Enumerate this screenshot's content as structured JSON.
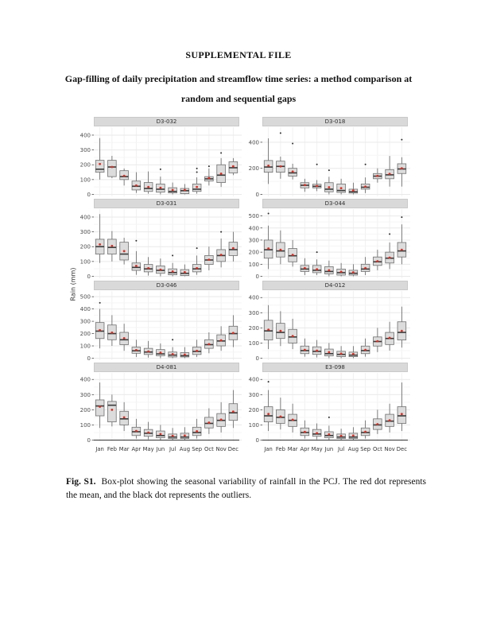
{
  "page": {
    "header": "SUPPLEMENTAL FILE",
    "title_line1": "Gap-filling of daily precipitation and streamflow time series: a method comparison at",
    "title_line2": "random and sequential gaps",
    "caption_label": "Fig. S1.",
    "caption_text": "Box-plot showing the seasonal variability of rainfall in the PCJ. The red dot represents the mean, and the black dot represents the outliers."
  },
  "figure": {
    "ylabel": "Rain (mm)",
    "colors": {
      "strip_bg": "#d9d9d9",
      "box_fill": "#dcdcdc",
      "box_border": "#6f6f6f",
      "median": "#3a3a3a",
      "whisker": "#606060",
      "mean_dot": "#d93025",
      "outlier_dot": "#2b2b2b",
      "grid_major": "#e9e9e9",
      "grid_minor": "#f5f5f5",
      "axis": "#333333",
      "tick_label": "#4d4d4d"
    }
  },
  "chart_data": {
    "type": "boxplot",
    "layout": "4x2 facet grid, shared x axis on bottom row",
    "categories": [
      "Jan",
      "Feb",
      "Mar",
      "Apr",
      "May",
      "Jun",
      "Jul",
      "Aug",
      "Sep",
      "Oct",
      "Nov",
      "Dec"
    ],
    "ylabel": "Rain (mm)",
    "grid": "on",
    "box_format": "[min, q1, median, q3, max]",
    "panels": [
      {
        "title": "D3-032",
        "yticks": [
          0,
          100,
          200,
          300,
          400
        ],
        "ylim": [
          0,
          440
        ],
        "boxes": [
          [
            100,
            150,
            170,
            230,
            380
          ],
          [
            110,
            120,
            185,
            230,
            260
          ],
          [
            60,
            100,
            120,
            160,
            175
          ],
          [
            10,
            30,
            55,
            90,
            150
          ],
          [
            5,
            20,
            40,
            80,
            155
          ],
          [
            0,
            15,
            35,
            70,
            120
          ],
          [
            0,
            10,
            20,
            45,
            80
          ],
          [
            0,
            5,
            25,
            40,
            70
          ],
          [
            5,
            20,
            35,
            70,
            115
          ],
          [
            60,
            90,
            105,
            120,
            175
          ],
          [
            50,
            80,
            130,
            200,
            245
          ],
          [
            130,
            145,
            180,
            220,
            245
          ]
        ],
        "means": [
          205,
          185,
          125,
          60,
          50,
          45,
          30,
          30,
          50,
          110,
          140,
          190
        ],
        "outliers": [
          [],
          [],
          [],
          [],
          [],
          [
            170
          ],
          [],
          [],
          [
            150,
            175
          ],
          [
            190
          ],
          [
            280
          ],
          []
        ]
      },
      {
        "title": "D3-018",
        "yticks": [
          0,
          200,
          400
        ],
        "ylim": [
          0,
          500
        ],
        "boxes": [
          [
            80,
            170,
            210,
            260,
            430
          ],
          [
            120,
            170,
            215,
            255,
            290
          ],
          [
            115,
            140,
            165,
            200,
            235
          ],
          [
            20,
            50,
            70,
            90,
            120
          ],
          [
            25,
            50,
            62,
            78,
            110
          ],
          [
            0,
            20,
            40,
            90,
            135
          ],
          [
            0,
            15,
            30,
            80,
            120
          ],
          [
            0,
            10,
            20,
            40,
            90
          ],
          [
            10,
            40,
            55,
            80,
            130
          ],
          [
            90,
            120,
            140,
            160,
            200
          ],
          [
            60,
            120,
            150,
            190,
            295
          ],
          [
            60,
            160,
            195,
            235,
            285
          ]
        ],
        "means": [
          220,
          215,
          175,
          72,
          65,
          55,
          48,
          30,
          60,
          142,
          158,
          200
        ],
        "outliers": [
          [],
          [
            470
          ],
          [
            390
          ],
          [],
          [
            230
          ],
          [
            185
          ],
          [],
          [],
          [
            230
          ],
          [],
          [],
          [
            420
          ]
        ]
      },
      {
        "title": "D3-031",
        "yticks": [
          0,
          100,
          200,
          300,
          400
        ],
        "ylim": [
          0,
          440
        ],
        "boxes": [
          [
            90,
            150,
            200,
            250,
            420
          ],
          [
            100,
            150,
            195,
            250,
            305
          ],
          [
            80,
            110,
            150,
            230,
            260
          ],
          [
            10,
            40,
            60,
            90,
            170
          ],
          [
            5,
            30,
            50,
            80,
            130
          ],
          [
            0,
            20,
            40,
            70,
            120
          ],
          [
            0,
            10,
            25,
            50,
            90
          ],
          [
            0,
            5,
            20,
            45,
            80
          ],
          [
            10,
            30,
            50,
            80,
            140
          ],
          [
            40,
            80,
            110,
            140,
            200
          ],
          [
            60,
            100,
            140,
            180,
            255
          ],
          [
            100,
            140,
            180,
            230,
            300
          ]
        ],
        "means": [
          215,
          205,
          170,
          70,
          55,
          45,
          33,
          28,
          55,
          112,
          145,
          190
        ],
        "outliers": [
          [],
          [],
          [],
          [
            240
          ],
          [],
          [],
          [
            140
          ],
          [],
          [
            190
          ],
          [],
          [
            300
          ],
          []
        ]
      },
      {
        "title": "D3-044",
        "yticks": [
          0,
          100,
          200,
          300,
          400,
          500
        ],
        "ylim": [
          0,
          540
        ],
        "boxes": [
          [
            60,
            150,
            220,
            300,
            420
          ],
          [
            100,
            160,
            210,
            280,
            380
          ],
          [
            80,
            120,
            170,
            230,
            300
          ],
          [
            10,
            40,
            60,
            90,
            150
          ],
          [
            10,
            30,
            50,
            90,
            140
          ],
          [
            0,
            20,
            40,
            80,
            130
          ],
          [
            0,
            10,
            30,
            60,
            110
          ],
          [
            0,
            10,
            25,
            50,
            100
          ],
          [
            10,
            40,
            60,
            100,
            160
          ],
          [
            50,
            90,
            120,
            160,
            220
          ],
          [
            60,
            110,
            150,
            200,
            280
          ],
          [
            100,
            160,
            210,
            280,
            430
          ]
        ],
        "means": [
          230,
          220,
          178,
          68,
          58,
          50,
          38,
          33,
          68,
          125,
          155,
          220
        ],
        "outliers": [
          [
            520
          ],
          [],
          [],
          [],
          [
            200
          ],
          [],
          [],
          [],
          [],
          [],
          [
            350
          ],
          [
            490
          ]
        ]
      },
      {
        "title": "D3-046",
        "yticks": [
          0,
          100,
          200,
          300,
          400,
          500
        ],
        "ylim": [
          0,
          530
        ],
        "boxes": [
          [
            80,
            160,
            220,
            290,
            400
          ],
          [
            100,
            150,
            200,
            270,
            350
          ],
          [
            60,
            110,
            150,
            210,
            280
          ],
          [
            10,
            40,
            60,
            90,
            150
          ],
          [
            5,
            30,
            50,
            80,
            140
          ],
          [
            0,
            20,
            35,
            70,
            120
          ],
          [
            0,
            10,
            25,
            50,
            90
          ],
          [
            0,
            10,
            20,
            45,
            90
          ],
          [
            10,
            30,
            55,
            90,
            150
          ],
          [
            40,
            80,
            110,
            150,
            210
          ],
          [
            60,
            100,
            140,
            190,
            260
          ],
          [
            90,
            150,
            200,
            260,
            350
          ]
        ],
        "means": [
          228,
          208,
          162,
          66,
          55,
          45,
          33,
          30,
          60,
          114,
          145,
          205
        ],
        "outliers": [
          [
            450
          ],
          [],
          [],
          [],
          [],
          [],
          [
            150
          ],
          [],
          [],
          [],
          [],
          []
        ]
      },
      {
        "title": "D4-012",
        "yticks": [
          0,
          100,
          200,
          300,
          400
        ],
        "ylim": [
          0,
          430
        ],
        "boxes": [
          [
            60,
            120,
            180,
            250,
            350
          ],
          [
            80,
            130,
            170,
            230,
            310
          ],
          [
            60,
            100,
            140,
            190,
            260
          ],
          [
            10,
            30,
            50,
            80,
            130
          ],
          [
            5,
            25,
            45,
            75,
            120
          ],
          [
            0,
            15,
            30,
            60,
            100
          ],
          [
            0,
            10,
            25,
            45,
            80
          ],
          [
            0,
            10,
            20,
            40,
            80
          ],
          [
            10,
            30,
            50,
            80,
            130
          ],
          [
            40,
            80,
            110,
            140,
            200
          ],
          [
            50,
            90,
            130,
            170,
            240
          ],
          [
            70,
            120,
            170,
            240,
            340
          ]
        ],
        "means": [
          188,
          180,
          146,
          55,
          50,
          40,
          30,
          28,
          55,
          112,
          134,
          180
        ],
        "outliers": [
          [],
          [],
          [],
          [],
          [],
          [],
          [],
          [],
          [],
          [],
          [],
          []
        ]
      },
      {
        "title": "D4-081",
        "yticks": [
          0,
          100,
          200,
          300,
          400
        ],
        "ylim": [
          0,
          430
        ],
        "boxes": [
          [
            80,
            160,
            225,
            265,
            380
          ],
          [
            90,
            120,
            230,
            255,
            300
          ],
          [
            60,
            100,
            140,
            190,
            250
          ],
          [
            10,
            30,
            55,
            85,
            140
          ],
          [
            5,
            25,
            45,
            70,
            120
          ],
          [
            0,
            15,
            30,
            60,
            100
          ],
          [
            0,
            10,
            20,
            40,
            80
          ],
          [
            0,
            10,
            20,
            45,
            85
          ],
          [
            10,
            30,
            50,
            85,
            140
          ],
          [
            40,
            80,
            110,
            150,
            210
          ],
          [
            50,
            90,
            130,
            175,
            250
          ],
          [
            80,
            130,
            180,
            240,
            330
          ]
        ],
        "means": [
          220,
          200,
          150,
          60,
          50,
          40,
          28,
          30,
          58,
          115,
          135,
          188
        ],
        "outliers": [
          [],
          [],
          [],
          [],
          [],
          [],
          [],
          [],
          [],
          [],
          [],
          []
        ]
      },
      {
        "title": "E3-098",
        "yticks": [
          0,
          100,
          200,
          300,
          400
        ],
        "ylim": [
          0,
          430
        ],
        "boxes": [
          [
            60,
            120,
            160,
            220,
            330
          ],
          [
            70,
            110,
            150,
            200,
            280
          ],
          [
            50,
            90,
            130,
            170,
            240
          ],
          [
            10,
            30,
            50,
            80,
            130
          ],
          [
            5,
            25,
            40,
            70,
            110
          ],
          [
            0,
            15,
            30,
            55,
            95
          ],
          [
            0,
            10,
            20,
            40,
            75
          ],
          [
            0,
            10,
            20,
            45,
            85
          ],
          [
            10,
            30,
            50,
            80,
            130
          ],
          [
            40,
            70,
            100,
            140,
            200
          ],
          [
            50,
            90,
            125,
            170,
            240
          ],
          [
            60,
            110,
            160,
            220,
            380
          ]
        ],
        "means": [
          172,
          155,
          134,
          54,
          46,
          38,
          28,
          30,
          55,
          105,
          130,
          172
        ],
        "outliers": [
          [
            385
          ],
          [],
          [],
          [],
          [],
          [
            150
          ],
          [],
          [],
          [],
          [],
          [],
          []
        ]
      }
    ]
  }
}
